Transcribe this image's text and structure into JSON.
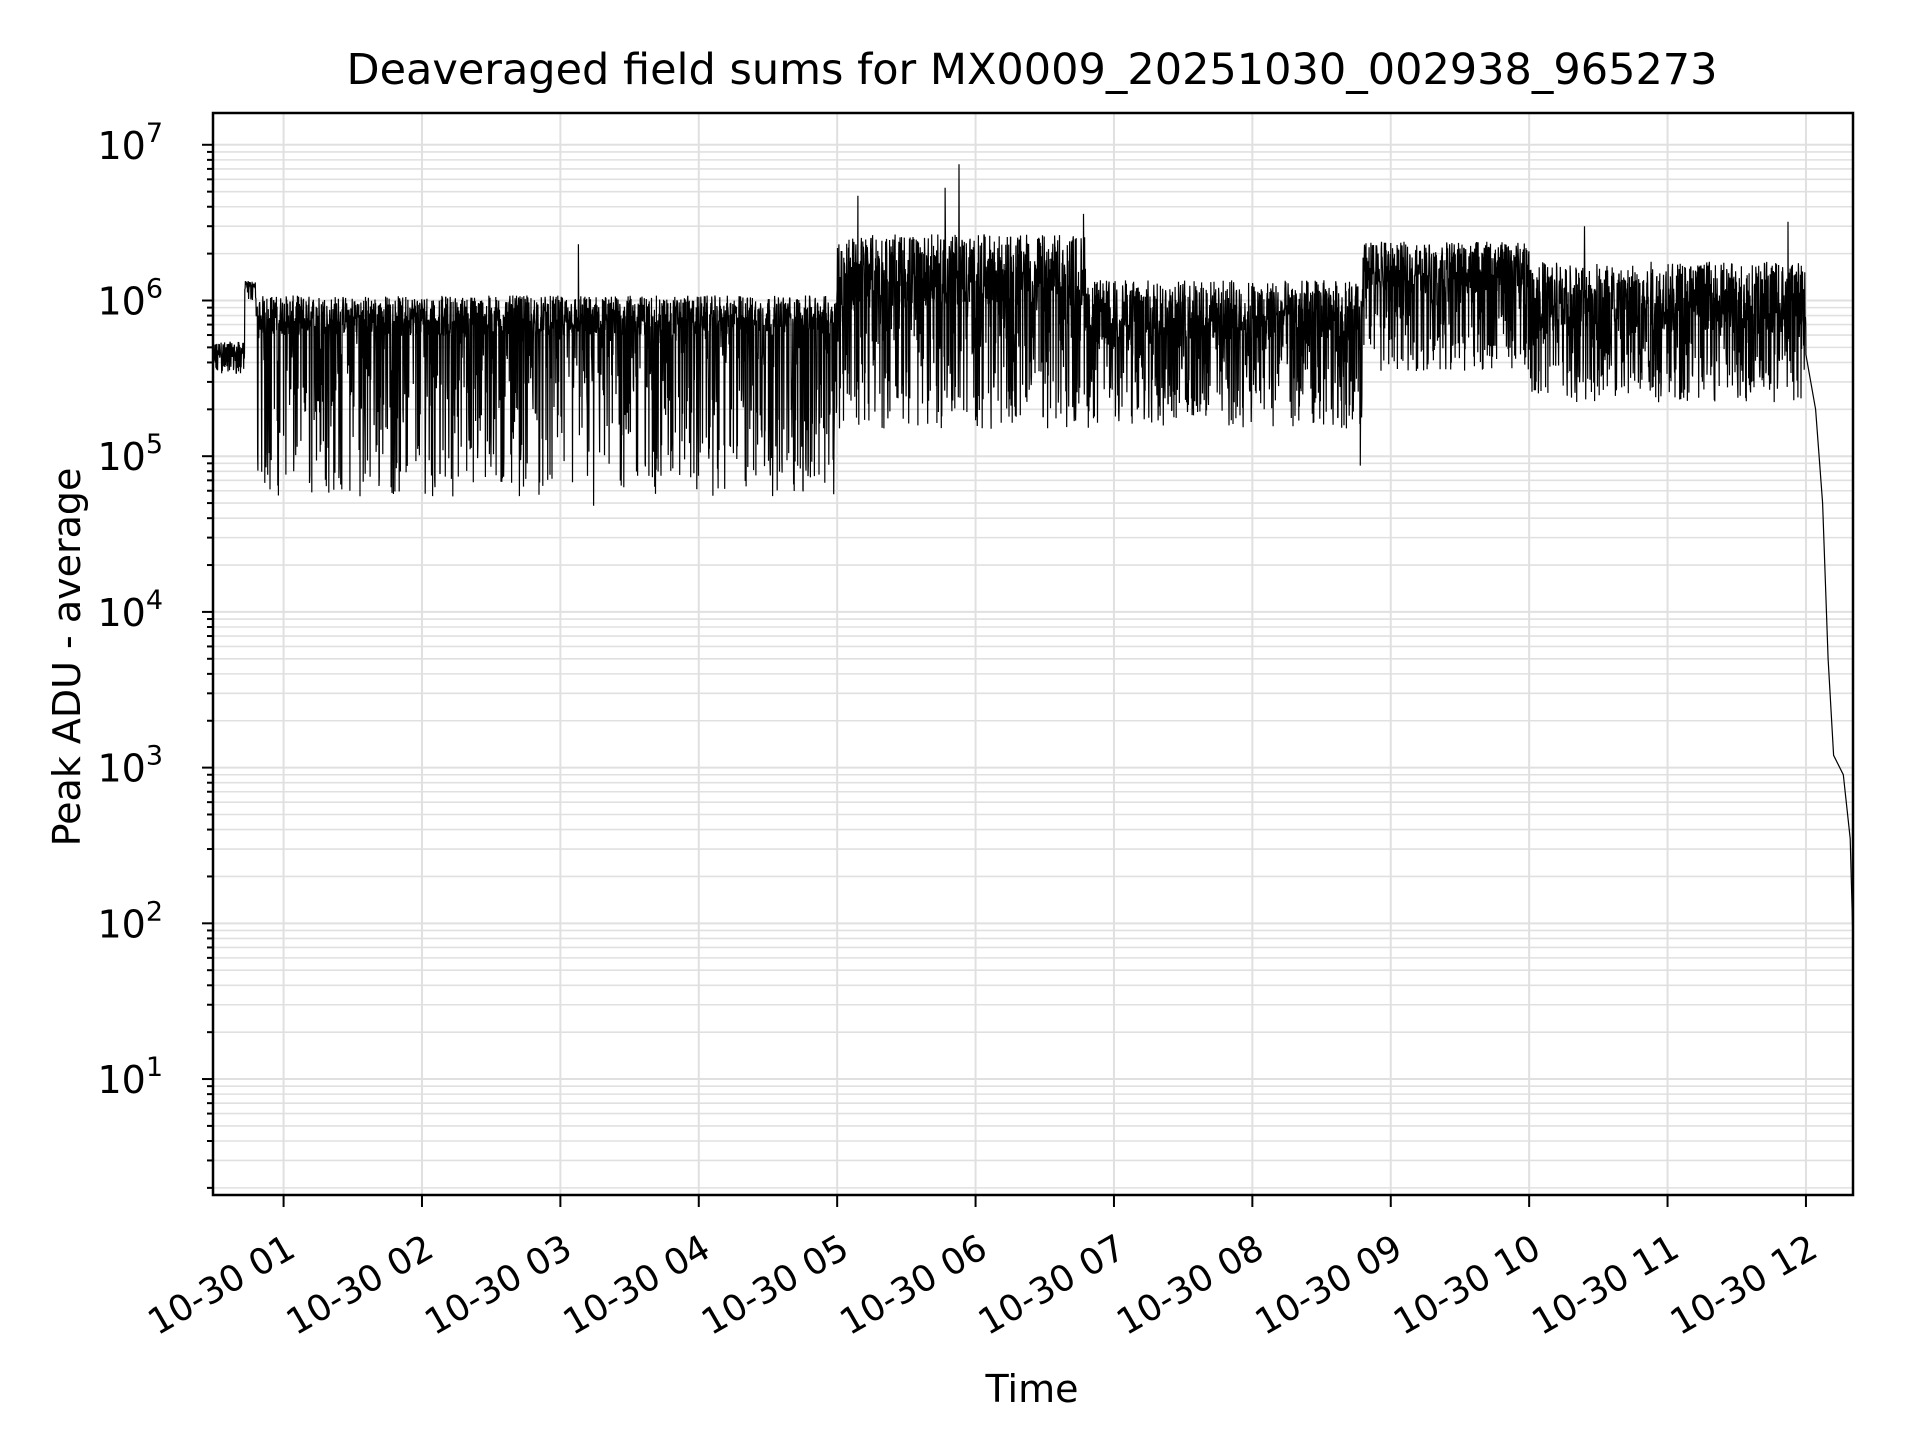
{
  "chart_data": {
    "type": "line",
    "title": "Deaveraged field sums for MX0009_20251030_002938_965273",
    "xlabel": "Time",
    "ylabel": "Peak ADU - average",
    "yscale": "log",
    "ylim": [
      1.8,
      16000000
    ],
    "xlim_hours": [
      0.49,
      12.34
    ],
    "grid": true,
    "line_color": "#000000",
    "grid_color": "#e0e0e0",
    "x_ticks": [
      {
        "hour": 1,
        "label": "10-30 01"
      },
      {
        "hour": 2,
        "label": "10-30 02"
      },
      {
        "hour": 3,
        "label": "10-30 03"
      },
      {
        "hour": 4,
        "label": "10-30 04"
      },
      {
        "hour": 5,
        "label": "10-30 05"
      },
      {
        "hour": 6,
        "label": "10-30 06"
      },
      {
        "hour": 7,
        "label": "10-30 07"
      },
      {
        "hour": 8,
        "label": "10-30 08"
      },
      {
        "hour": 9,
        "label": "10-30 09"
      },
      {
        "hour": 10,
        "label": "10-30 10"
      },
      {
        "hour": 11,
        "label": "10-30 11"
      },
      {
        "hour": 12,
        "label": "10-30 12"
      }
    ],
    "y_ticks": [
      {
        "value": 10,
        "base": "10",
        "exp": "1"
      },
      {
        "value": 100,
        "base": "10",
        "exp": "2"
      },
      {
        "value": 1000,
        "base": "10",
        "exp": "3"
      },
      {
        "value": 10000,
        "base": "10",
        "exp": "4"
      },
      {
        "value": 100000,
        "base": "10",
        "exp": "5"
      },
      {
        "value": 1000000,
        "base": "10",
        "exp": "6"
      },
      {
        "value": 10000000,
        "base": "10",
        "exp": "7"
      }
    ],
    "series": [
      {
        "name": "Peak ADU - average",
        "segments": [
          {
            "start_hour": 0.49,
            "end_hour": 0.72,
            "typical": 420000,
            "high": 560000,
            "low": 330000
          },
          {
            "start_hour": 0.72,
            "end_hour": 0.8,
            "typical": 1200000,
            "high": 1350000,
            "low": 1000000
          },
          {
            "start_hour": 0.8,
            "end_hour": 5.0,
            "typical": 600000,
            "high": 1150000,
            "low": 55000
          },
          {
            "start_hour": 5.0,
            "end_hour": 6.8,
            "typical": 900000,
            "high": 3000000,
            "low": 150000
          },
          {
            "start_hour": 6.8,
            "end_hour": 8.8,
            "typical": 550000,
            "high": 1500000,
            "low": 150000
          },
          {
            "start_hour": 8.8,
            "end_hour": 10.0,
            "typical": 1100000,
            "high": 2600000,
            "low": 350000
          },
          {
            "start_hour": 10.0,
            "end_hour": 12.0,
            "typical": 650000,
            "high": 2000000,
            "low": 220000
          }
        ],
        "spikes": [
          {
            "hour": 3.13,
            "value": 2300000
          },
          {
            "hour": 3.24,
            "value": 48000
          },
          {
            "hour": 5.15,
            "value": 4700000
          },
          {
            "hour": 5.78,
            "value": 5300000
          },
          {
            "hour": 5.88,
            "value": 7500000
          },
          {
            "hour": 6.78,
            "value": 3600000
          },
          {
            "hour": 8.78,
            "value": 87000
          },
          {
            "hour": 10.4,
            "value": 3000000
          },
          {
            "hour": 11.87,
            "value": 3200000
          }
        ],
        "drop": [
          {
            "hour": 12.0,
            "value": 450000
          },
          {
            "hour": 12.07,
            "value": 200000
          },
          {
            "hour": 12.12,
            "value": 50000
          },
          {
            "hour": 12.16,
            "value": 5000
          },
          {
            "hour": 12.2,
            "value": 1200
          },
          {
            "hour": 12.27,
            "value": 900
          },
          {
            "hour": 12.32,
            "value": 350
          },
          {
            "hour": 12.34,
            "value": 75
          }
        ]
      }
    ]
  }
}
